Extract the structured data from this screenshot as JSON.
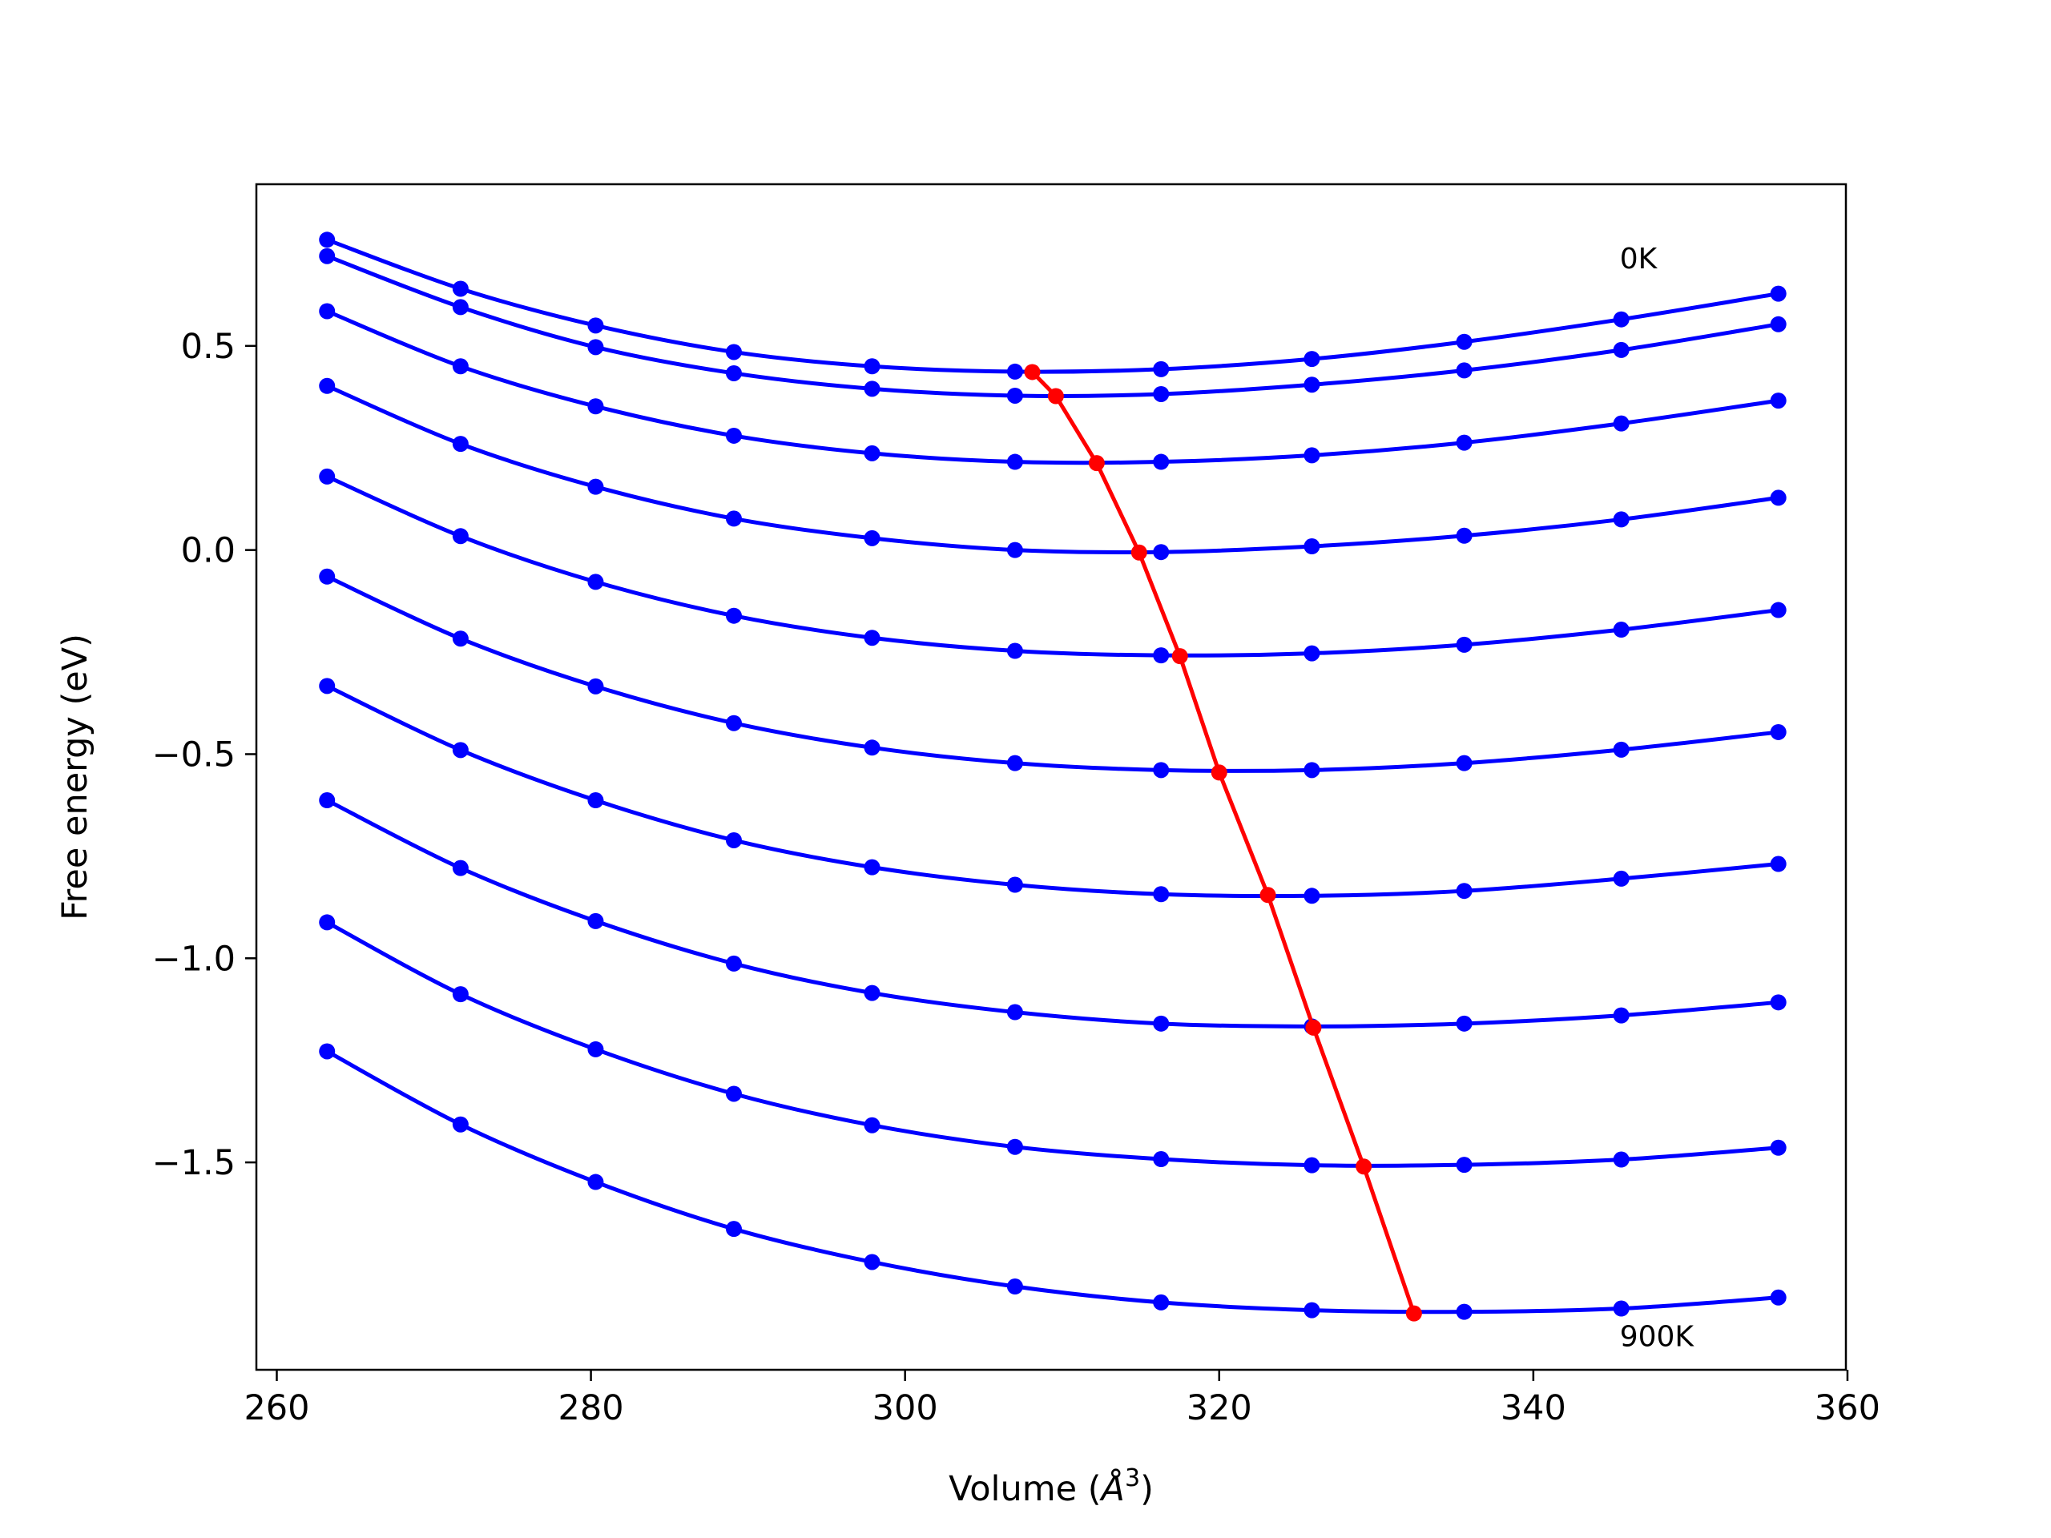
{
  "chart_data": {
    "type": "line",
    "xlabel": "Volume",
    "xlabel_unit": "Å",
    "xlabel_exp": "3",
    "ylabel": "Free energy (eV)",
    "xlim": [
      258.7,
      359.9
    ],
    "ylim": [
      -2.008,
      0.896
    ],
    "xticks": [
      260,
      280,
      300,
      320,
      340,
      360
    ],
    "xtick_labels": [
      "260",
      "280",
      "300",
      "320",
      "340",
      "360"
    ],
    "yticks": [
      0.5,
      0.0,
      -0.5,
      -1.0,
      -1.5
    ],
    "ytick_labels": [
      "0.5",
      "0.0",
      "−0.5",
      "−1.0",
      "−1.5"
    ],
    "grid": false,
    "annotations": [
      {
        "text": "0K",
        "x": 345.5,
        "y": 0.69
      },
      {
        "text": "900K",
        "x": 345.5,
        "y": -1.95
      }
    ],
    "x": [
      263.2,
      271.7,
      280.3,
      289.1,
      297.9,
      307.0,
      316.3,
      325.9,
      335.6,
      345.6,
      355.6
    ],
    "series": [
      {
        "color": "#0000ff",
        "values": [
          0.76,
          0.64,
          0.55,
          0.485,
          0.45,
          0.437,
          0.443,
          0.468,
          0.51,
          0.565,
          0.628
        ]
      },
      {
        "color": "#0000ff",
        "values": [
          0.72,
          0.595,
          0.497,
          0.433,
          0.395,
          0.378,
          0.382,
          0.405,
          0.44,
          0.49,
          0.553
        ]
      },
      {
        "color": "#0000ff",
        "values": [
          0.585,
          0.45,
          0.352,
          0.28,
          0.237,
          0.216,
          0.216,
          0.232,
          0.263,
          0.31,
          0.366
        ]
      },
      {
        "color": "#0000ff",
        "values": [
          0.402,
          0.26,
          0.155,
          0.077,
          0.029,
          0.0,
          -0.005,
          0.009,
          0.035,
          0.075,
          0.128
        ]
      },
      {
        "color": "#0000ff",
        "values": [
          0.18,
          0.034,
          -0.078,
          -0.161,
          -0.215,
          -0.247,
          -0.258,
          -0.253,
          -0.232,
          -0.195,
          -0.147
        ]
      },
      {
        "color": "#0000ff",
        "values": [
          -0.065,
          -0.217,
          -0.334,
          -0.424,
          -0.484,
          -0.522,
          -0.539,
          -0.539,
          -0.522,
          -0.489,
          -0.446
        ]
      },
      {
        "color": "#0000ff",
        "values": [
          -0.333,
          -0.49,
          -0.613,
          -0.711,
          -0.777,
          -0.82,
          -0.843,
          -0.847,
          -0.835,
          -0.805,
          -0.769
        ]
      },
      {
        "color": "#0000ff",
        "values": [
          -0.613,
          -0.779,
          -0.909,
          -1.013,
          -1.085,
          -1.132,
          -1.16,
          -1.167,
          -1.16,
          -1.14,
          -1.108
        ]
      },
      {
        "color": "#0000ff",
        "values": [
          -0.912,
          -1.088,
          -1.223,
          -1.332,
          -1.409,
          -1.462,
          -1.492,
          -1.507,
          -1.506,
          -1.493,
          -1.464
        ]
      },
      {
        "color": "#0000ff",
        "values": [
          -1.228,
          -1.407,
          -1.548,
          -1.663,
          -1.744,
          -1.804,
          -1.843,
          -1.862,
          -1.866,
          -1.858,
          -1.831
        ]
      }
    ],
    "minima": {
      "color": "#ff0000",
      "x": [
        308.1,
        309.6,
        312.2,
        314.9,
        317.5,
        320.0,
        323.1,
        326.0,
        329.2,
        332.4
      ],
      "y": [
        0.436,
        0.377,
        0.213,
        -0.006,
        -0.26,
        -0.545,
        -0.845,
        -1.17,
        -1.51,
        -1.87
      ]
    }
  }
}
